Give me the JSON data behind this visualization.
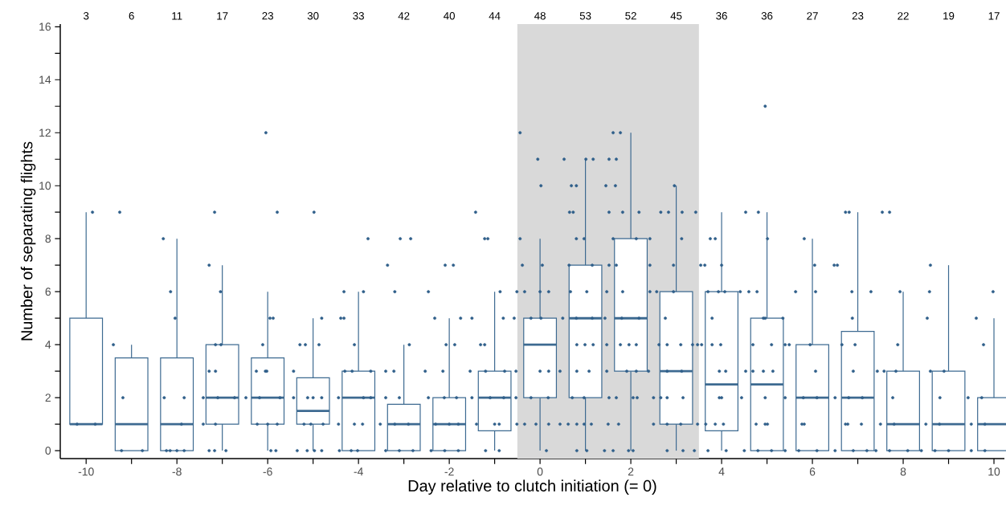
{
  "chart_data": {
    "type": "box",
    "xlabel": "Day relative to clutch initiation (= 0)",
    "ylabel": "Number of separating flights",
    "x": [
      -10,
      -9,
      -8,
      -7,
      -6,
      -5,
      -4,
      -3,
      -2,
      -1,
      0,
      1,
      2,
      3,
      4,
      5,
      6,
      7,
      8,
      9,
      10
    ],
    "xlim": [
      -10.57,
      10.23
    ],
    "ylim": [
      -0.3,
      16.1
    ],
    "xticks": [
      -10,
      {
        "value": -9,
        "label": null
      },
      -8,
      {
        "value": -7,
        "label": null
      },
      -6,
      {
        "value": -5,
        "label": null
      },
      -4,
      {
        "value": -3,
        "label": null
      },
      -2,
      {
        "value": -1,
        "label": null
      },
      0,
      {
        "value": 1,
        "label": null
      },
      2,
      {
        "value": 3,
        "label": null
      },
      4,
      {
        "value": 5,
        "label": null
      },
      6,
      {
        "value": 7,
        "label": null
      },
      8,
      {
        "value": 9,
        "label": null
      },
      10
    ],
    "yticks": [
      0,
      {
        "value": 1,
        "label": null
      },
      2,
      {
        "value": 3,
        "label": null
      },
      4,
      {
        "value": 5,
        "label": null
      },
      6,
      {
        "value": 7,
        "label": null
      },
      8,
      {
        "value": 9,
        "label": null
      },
      10,
      {
        "value": 11,
        "label": null
      },
      12,
      {
        "value": 13,
        "label": null
      },
      14,
      {
        "value": 15,
        "label": null
      },
      16
    ],
    "bands": [
      {
        "axis": "x",
        "from": -0.5,
        "to": 3.5,
        "color": "#d9d9d9"
      }
    ],
    "annotations": [
      "3",
      "6",
      "11",
      "17",
      "23",
      "30",
      "33",
      "42",
      "40",
      "44",
      "48",
      "53",
      "52",
      "45",
      "36",
      "36",
      "27",
      "23",
      "22",
      "19",
      "17"
    ],
    "series": [
      {
        "color": "#3d6a91",
        "boxes": [
          {
            "low": 1,
            "q1": 1,
            "median": 1,
            "q3": 5,
            "high": 9
          },
          {
            "low": 0,
            "q1": 0,
            "median": 1,
            "q3": 3.5,
            "high": 4
          },
          {
            "low": 0,
            "q1": 0,
            "median": 1,
            "q3": 3.5,
            "high": 8
          },
          {
            "low": 0,
            "q1": 1,
            "median": 2,
            "q3": 4,
            "high": 7
          },
          {
            "low": 0,
            "q1": 1,
            "median": 2,
            "q3": 3.5,
            "high": 6
          },
          {
            "low": 0,
            "q1": 1,
            "median": 1.5,
            "q3": 2.75,
            "high": 5
          },
          {
            "low": 0,
            "q1": 0,
            "median": 2,
            "q3": 3,
            "high": 6
          },
          {
            "low": 0,
            "q1": 0,
            "median": 1,
            "q3": 1.75,
            "high": 4
          },
          {
            "low": 0,
            "q1": 0,
            "median": 1,
            "q3": 2,
            "high": 5
          },
          {
            "low": 0,
            "q1": 0.75,
            "median": 2,
            "q3": 3,
            "high": 6
          },
          {
            "low": 0,
            "q1": 2,
            "median": 4,
            "q3": 5,
            "high": 8
          },
          {
            "low": 0,
            "q1": 2,
            "median": 5,
            "q3": 7,
            "high": 11
          },
          {
            "low": 0,
            "q1": 3,
            "median": 5,
            "q3": 8,
            "high": 12
          },
          {
            "low": 0,
            "q1": 1,
            "median": 3,
            "q3": 6,
            "high": 10
          },
          {
            "low": 0,
            "q1": 0.75,
            "median": 2.5,
            "q3": 6,
            "high": 9
          },
          {
            "low": 0,
            "q1": 0,
            "median": 2.5,
            "q3": 5,
            "high": 9
          },
          {
            "low": 0,
            "q1": 0,
            "median": 2,
            "q3": 4,
            "high": 8
          },
          {
            "low": 0,
            "q1": 0,
            "median": 2,
            "q3": 4.5,
            "high": 9
          },
          {
            "low": 0,
            "q1": 0,
            "median": 1,
            "q3": 3,
            "high": 6
          },
          {
            "low": 0,
            "q1": 0,
            "median": 1,
            "q3": 3,
            "high": 7
          },
          {
            "low": 0,
            "q1": 0,
            "median": 1,
            "q3": 2,
            "high": 5
          }
        ]
      },
      {
        "type": "scatter",
        "color": "#2f5f8a",
        "x": [
          -10.2,
          -9.8,
          -9.86,
          -9.26,
          -9.4,
          -9.19,
          -9.22,
          -8.76,
          -8.3,
          -8.14,
          -8.04,
          -8.28,
          -7.84,
          -8.23,
          -8.0,
          -7.84,
          -8.15,
          -7.9,
          -7.17,
          -7.29,
          -7.04,
          -7.15,
          -7.03,
          -7.29,
          -7.15,
          -7.42,
          -7.1,
          -6.73,
          -7.42,
          -7.15,
          -7.29,
          -7.17,
          -6.92,
          -6.04,
          -5.79,
          -5.95,
          -5.88,
          -6.11,
          -6.25,
          -6.05,
          -6.02,
          -6.48,
          -6.18,
          -5.73,
          -6.23,
          -5.79,
          -6.0,
          -5.93,
          -5.82,
          -4.98,
          -4.81,
          -5.29,
          -5.17,
          -4.87,
          -5.43,
          -5.43,
          -5.12,
          -4.81,
          -5.0,
          -5.2,
          -4.78,
          -5.05,
          -5.35,
          -5.13,
          -4.97,
          -4.81,
          -3.79,
          -4.32,
          -3.89,
          -4.39,
          -4.32,
          -4.09,
          -4.3,
          -4.14,
          -3.73,
          -4.44,
          -3.89,
          -3.73,
          -4.44,
          -4.09,
          -3.91,
          -4.42,
          -4.16,
          -4.02,
          -3.36,
          -3.08,
          -2.85,
          -3.2,
          -2.88,
          -3.4,
          -3.22,
          -3.4,
          -3.1,
          -3.52,
          -3.2,
          -2.9,
          -3.4,
          -3.1,
          -2.8,
          -2.09,
          -1.91,
          -2.46,
          -2.32,
          -2.07,
          -1.88,
          -2.53,
          -2.14,
          -2.46,
          -2.11,
          -1.84,
          -2.3,
          -2.0,
          -1.8,
          -2.4,
          -2.1,
          -1.8,
          -1.42,
          -1.22,
          -1.15,
          -0.88,
          -1.75,
          -1.5,
          -0.81,
          -1.31,
          -1.22,
          -1.54,
          -1.2,
          -0.78,
          -1.5,
          -1.1,
          -0.8,
          -1.4,
          -1.0,
          -0.9,
          -1.2,
          -0.9,
          -0.44,
          -0.05,
          0.02,
          -0.44,
          -0.39,
          0.05,
          -0.51,
          -0.34,
          0.0,
          0.19,
          -0.57,
          -0.2,
          0.02,
          -0.53,
          0.0,
          0.19,
          -0.53,
          -0.2,
          0.18,
          -0.51,
          -0.34,
          -0.09,
          0.19,
          0.14,
          0.53,
          1.01,
          1.17,
          0.69,
          0.8,
          0.65,
          0.73,
          0.8,
          0.97,
          0.64,
          1.15,
          0.67,
          1.03,
          0.5,
          0.8,
          1.15,
          0.81,
          0.99,
          1.17,
          0.44,
          0.81,
          1.08,
          0.71,
          0.97,
          0.44,
          0.62,
          0.81,
          0.97,
          1.13,
          0.81,
          1.03,
          1.61,
          1.77,
          1.52,
          1.68,
          1.45,
          1.66,
          1.52,
          1.82,
          2.18,
          1.61,
          2.12,
          1.52,
          1.68,
          1.47,
          1.82,
          1.43,
          1.8,
          2.18,
          1.47,
          1.77,
          1.96,
          2.12,
          1.47,
          1.91,
          2.12,
          1.52,
          1.68,
          2.05,
          2.14,
          1.5,
          1.73,
          1.42,
          1.61,
          1.95,
          2.05,
          2.96,
          2.66,
          2.83,
          3.13,
          2.42,
          3.12,
          2.42,
          2.94,
          2.42,
          2.57,
          2.94,
          2.76,
          2.62,
          2.8,
          3.1,
          2.39,
          2.8,
          3.12,
          2.5,
          2.66,
          2.8,
          3.15,
          2.5,
          2.8,
          3.1,
          2.8,
          3.15,
          3.43,
          3.75,
          3.86,
          3.54,
          3.63,
          4.0,
          3.7,
          3.93,
          4.07,
          3.79,
          3.36,
          3.47,
          3.56,
          3.79,
          3.98,
          3.95,
          4.09,
          3.95,
          4.0,
          3.47,
          3.65,
          3.86,
          4.04,
          3.4,
          3.7,
          4.1,
          4.96,
          4.53,
          4.81,
          5.01,
          4.41,
          4.6,
          4.78,
          4.92,
          4.96,
          4.69,
          5.1,
          4.53,
          4.69,
          4.92,
          5.13,
          4.44,
          4.96,
          4.76,
          4.96,
          5.01,
          4.5,
          4.8,
          5.1,
          5.82,
          6.05,
          5.63,
          6.07,
          5.35,
          5.4,
          5.49,
          5.95,
          6.07,
          5.4,
          5.8,
          6.1,
          5.77,
          5.82,
          5.4,
          5.7,
          6.1,
          6.73,
          6.81,
          6.48,
          6.55,
          6.87,
          6.88,
          6.65,
          6.94,
          6.9,
          6.5,
          6.8,
          7.1,
          6.73,
          6.78,
          7.08,
          6.5,
          6.9,
          7.2,
          7.54,
          7.7,
          7.29,
          7.93,
          7.88,
          7.43,
          7.58,
          7.84,
          7.77,
          7.5,
          7.8,
          7.4,
          7.7,
          8.1,
          8.6,
          8.58,
          8.53,
          8.6,
          8.9,
          8.81,
          8.5,
          8.8,
          8.4,
          8.7,
          9.0,
          9.98,
          9.61,
          9.77,
          9.43,
          9.73,
          9.5,
          9.8,
          9.5,
          9.8
        ],
        "values": [
          1,
          1,
          9,
          9,
          4,
          2,
          0,
          0,
          8,
          6,
          5,
          2,
          2,
          0,
          0,
          0,
          0,
          1,
          9,
          7,
          6,
          4,
          4,
          3,
          3,
          2,
          2,
          2,
          1,
          1,
          0,
          0,
          0,
          12,
          9,
          5,
          5,
          4,
          3,
          3,
          3,
          2,
          2,
          2,
          1,
          1,
          1,
          0,
          0,
          9,
          5,
          4,
          4,
          4,
          3,
          2,
          2,
          2,
          2,
          1,
          1,
          1,
          0,
          0,
          0,
          0,
          8,
          6,
          6,
          5,
          5,
          4,
          3,
          3,
          3,
          2,
          2,
          2,
          1,
          1,
          1,
          0,
          0,
          0,
          7,
          8,
          8,
          6,
          4,
          3,
          3,
          2,
          2,
          1,
          1,
          1,
          0,
          0,
          0,
          7,
          7,
          6,
          5,
          4,
          4,
          3,
          3,
          2,
          2,
          2,
          1,
          1,
          1,
          0,
          0,
          0,
          9,
          8,
          8,
          6,
          5,
          5,
          5,
          4,
          4,
          3,
          3,
          3,
          2,
          2,
          2,
          1,
          1,
          1,
          0,
          0,
          12,
          11,
          10,
          8,
          7,
          7,
          6,
          6,
          6,
          6,
          5,
          5,
          5,
          3,
          3,
          3,
          2,
          2,
          2,
          1,
          1,
          1,
          1,
          0,
          11,
          11,
          11,
          10,
          10,
          9,
          9,
          8,
          8,
          7,
          7,
          6,
          6,
          5,
          5,
          5,
          4,
          4,
          4,
          3,
          3,
          3,
          2,
          2,
          1,
          1,
          1,
          1,
          1,
          0,
          0,
          12,
          12,
          11,
          11,
          10,
          10,
          9,
          9,
          9,
          8,
          8,
          7,
          7,
          6,
          6,
          5,
          5,
          5,
          4,
          4,
          4,
          4,
          3,
          3,
          3,
          2,
          2,
          2,
          2,
          1,
          1,
          0,
          0,
          0,
          0,
          10,
          9,
          9,
          9,
          8,
          8,
          7,
          7,
          6,
          6,
          6,
          5,
          4,
          4,
          4,
          3,
          3,
          3,
          2,
          2,
          2,
          2,
          1,
          1,
          1,
          0,
          0,
          9,
          8,
          8,
          7,
          7,
          7,
          6,
          6,
          6,
          5,
          4,
          4,
          4,
          4,
          4,
          3,
          3,
          2,
          2,
          1,
          1,
          1,
          1,
          0,
          0,
          0,
          13,
          9,
          9,
          8,
          6,
          6,
          6,
          5,
          5,
          4,
          4,
          3,
          3,
          3,
          3,
          2,
          2,
          1,
          1,
          1,
          0,
          0,
          0,
          8,
          7,
          6,
          6,
          5,
          4,
          4,
          4,
          3,
          2,
          2,
          2,
          1,
          1,
          0,
          0,
          0,
          9,
          9,
          7,
          7,
          6,
          5,
          4,
          4,
          3,
          2,
          2,
          2,
          1,
          1,
          1,
          0,
          0,
          0,
          9,
          9,
          6,
          6,
          4,
          3,
          3,
          3,
          2,
          1,
          1,
          0,
          0,
          0,
          7,
          6,
          5,
          3,
          3,
          2,
          1,
          1,
          0,
          0,
          0,
          6,
          5,
          4,
          2,
          2,
          1,
          1,
          0,
          0
        ]
      }
    ]
  }
}
